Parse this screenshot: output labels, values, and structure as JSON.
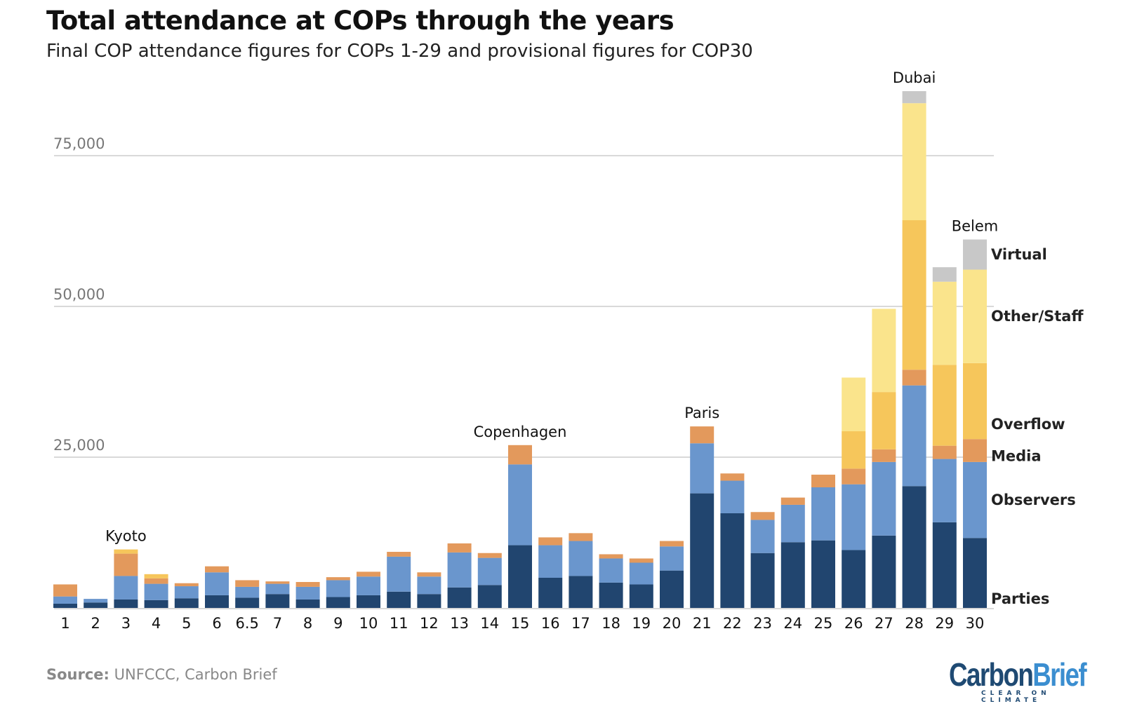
{
  "title": "Total attendance at COPs through the years",
  "subtitle": "Final COP attendance figures for COPs 1-29 and provisional figures for COP30",
  "source_label": "Source:",
  "source_text": " UNFCCC, Carbon Brief",
  "logo": {
    "part1": "Carbon",
    "part2": "Brief",
    "tagline": "CLEAR ON CLIMATE"
  },
  "chart_data": {
    "type": "bar",
    "stacked": true,
    "title": "Total attendance at COPs through the years",
    "xlabel": "",
    "ylabel": "",
    "ylim": [
      0,
      87000
    ],
    "yticks": [
      25000,
      50000,
      75000
    ],
    "ytick_labels": [
      "25,000",
      "50,000",
      "75,000"
    ],
    "grid": true,
    "legend_placement": "right (inline labels)",
    "categories": [
      "1",
      "2",
      "3",
      "4",
      "5",
      "6",
      "6.5",
      "7",
      "8",
      "9",
      "10",
      "11",
      "12",
      "13",
      "14",
      "15",
      "16",
      "17",
      "18",
      "19",
      "20",
      "21",
      "22",
      "23",
      "24",
      "25",
      "26",
      "27",
      "28",
      "29",
      "30"
    ],
    "annotations": [
      {
        "category": "3",
        "text": "Kyoto"
      },
      {
        "category": "15",
        "text": "Copenhagen"
      },
      {
        "category": "21",
        "text": "Paris"
      },
      {
        "category": "28",
        "text": "Dubai"
      },
      {
        "category": "30",
        "text": "Belem"
      }
    ],
    "series": [
      {
        "name": "Parties",
        "color": "#21456f",
        "values": [
          700,
          900,
          1400,
          1300,
          1600,
          2100,
          1700,
          2300,
          1400,
          1800,
          2100,
          2700,
          2300,
          3400,
          3800,
          10400,
          5000,
          5300,
          4200,
          3900,
          6200,
          19000,
          15700,
          9100,
          10900,
          11200,
          9600,
          12000,
          20200,
          14200,
          11600
        ]
      },
      {
        "name": "Observers",
        "color": "#6a96cd",
        "values": [
          1200,
          600,
          3900,
          2700,
          2000,
          3800,
          1800,
          1700,
          2100,
          2800,
          3100,
          5800,
          2900,
          5800,
          4500,
          13400,
          5400,
          5800,
          4000,
          3600,
          4000,
          8300,
          5400,
          5500,
          6200,
          8800,
          10900,
          12200,
          16700,
          10500,
          12600
        ]
      },
      {
        "name": "Media",
        "color": "#e3995c",
        "values": [
          2000,
          0,
          3700,
          900,
          500,
          1000,
          1100,
          400,
          800,
          500,
          800,
          800,
          700,
          1500,
          800,
          3200,
          1300,
          1300,
          700,
          700,
          900,
          2800,
          1200,
          1300,
          1200,
          2100,
          2600,
          2100,
          2600,
          2200,
          3800
        ]
      },
      {
        "name": "Overflow",
        "color": "#f6c65b",
        "values": [
          0,
          0,
          700,
          700,
          0,
          0,
          0,
          0,
          0,
          0,
          0,
          0,
          0,
          0,
          0,
          0,
          0,
          0,
          0,
          0,
          0,
          0,
          0,
          0,
          0,
          0,
          6200,
          9500,
          24800,
          13400,
          12600
        ]
      },
      {
        "name": "Other/Staff",
        "color": "#fae48c",
        "values": [
          0,
          0,
          0,
          0,
          0,
          0,
          0,
          0,
          0,
          0,
          0,
          0,
          0,
          0,
          0,
          0,
          0,
          0,
          0,
          0,
          0,
          0,
          0,
          0,
          0,
          0,
          8900,
          13800,
          19400,
          13800,
          15500
        ]
      },
      {
        "name": "Virtual",
        "color": "#c8c8c8",
        "values": [
          0,
          0,
          0,
          0,
          0,
          0,
          0,
          0,
          0,
          0,
          0,
          0,
          0,
          0,
          0,
          0,
          0,
          0,
          0,
          0,
          0,
          0,
          0,
          0,
          0,
          0,
          0,
          0,
          2000,
          2400,
          5000
        ]
      }
    ]
  }
}
